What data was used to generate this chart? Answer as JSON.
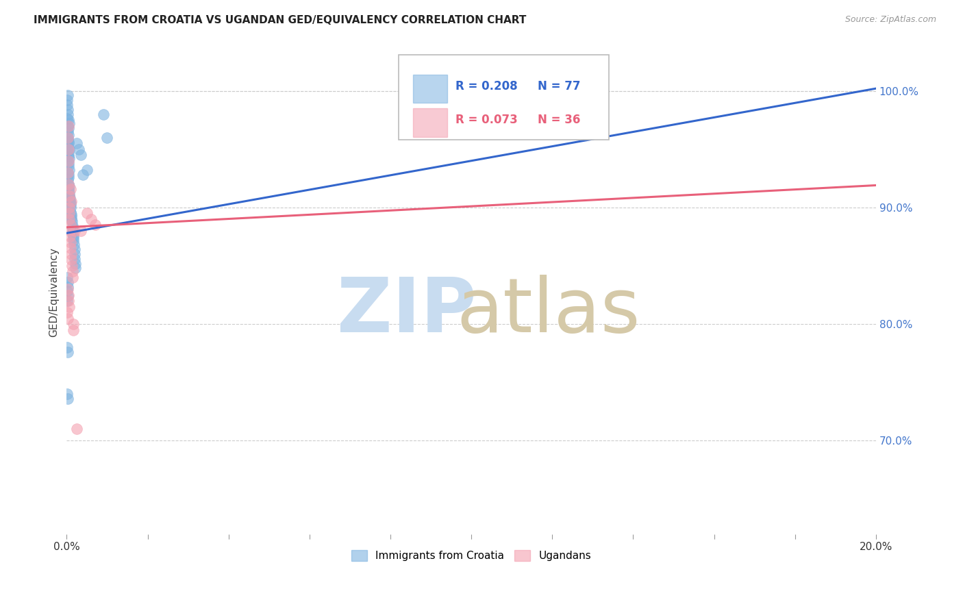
{
  "title": "IMMIGRANTS FROM CROATIA VS UGANDAN GED/EQUIVALENCY CORRELATION CHART",
  "source": "Source: ZipAtlas.com",
  "ylabel": "GED/Equivalency",
  "ytick_values": [
    0.7,
    0.8,
    0.9,
    1.0
  ],
  "ytick_labels": [
    "70.0%",
    "80.0%",
    "90.0%",
    "100.0%"
  ],
  "xlim": [
    0.0,
    0.2
  ],
  "ylim": [
    0.62,
    1.035
  ],
  "blue_color": "#7EB3E0",
  "pink_color": "#F4A0B0",
  "line_blue": "#3366CC",
  "line_pink": "#E8607A",
  "legend_r1": "R = 0.208",
  "legend_n1": "N = 77",
  "legend_r2": "R = 0.073",
  "legend_n2": "N = 36",
  "watermark_zip_color": "#C8DCF0",
  "watermark_atlas_color": "#D5C9A8",
  "title_fontsize": 11,
  "source_fontsize": 9,
  "blue_line_intercept": 0.878,
  "blue_line_slope": 0.62,
  "pink_line_intercept": 0.883,
  "pink_line_slope": 0.18,
  "croatia_x": [
    0.0002,
    0.0003,
    0.0004,
    0.0003,
    0.0005,
    0.0004,
    0.0006,
    0.0003,
    0.0002,
    0.0004,
    0.0003,
    0.0005,
    0.0004,
    0.0003,
    0.0002,
    0.0004,
    0.0005,
    0.0006,
    0.0007,
    0.0004,
    0.0003,
    0.0005,
    0.0006,
    0.0004,
    0.0003,
    0.0005,
    0.0004,
    0.0006,
    0.0007,
    0.0005,
    0.0008,
    0.0007,
    0.0009,
    0.0008,
    0.001,
    0.0009,
    0.001,
    0.0012,
    0.0011,
    0.0013,
    0.0012,
    0.0014,
    0.0015,
    0.0014,
    0.0016,
    0.0015,
    0.0017,
    0.0016,
    0.0018,
    0.0019,
    0.002,
    0.0019,
    0.0021,
    0.0022,
    0.0001,
    0.0002,
    0.0001,
    0.0003,
    0.0002,
    0.0001,
    0.0001,
    0.0002,
    0.0003,
    0.0001,
    0.0002,
    0.0001,
    0.0001,
    0.0002,
    0.0001,
    0.0003,
    0.0025,
    0.003,
    0.0035,
    0.009,
    0.01,
    0.005,
    0.004
  ],
  "croatia_y": [
    0.96,
    0.97,
    0.975,
    0.965,
    0.955,
    0.968,
    0.972,
    0.958,
    0.95,
    0.962,
    0.948,
    0.956,
    0.944,
    0.952,
    0.94,
    0.946,
    0.938,
    0.942,
    0.95,
    0.936,
    0.93,
    0.928,
    0.932,
    0.926,
    0.924,
    0.92,
    0.916,
    0.918,
    0.912,
    0.914,
    0.908,
    0.91,
    0.904,
    0.906,
    0.9,
    0.902,
    0.896,
    0.892,
    0.894,
    0.888,
    0.89,
    0.884,
    0.88,
    0.882,
    0.876,
    0.878,
    0.872,
    0.874,
    0.868,
    0.864,
    0.86,
    0.856,
    0.852,
    0.848,
    0.988,
    0.984,
    0.992,
    0.98,
    0.996,
    0.976,
    0.84,
    0.836,
    0.832,
    0.828,
    0.824,
    0.82,
    0.78,
    0.776,
    0.74,
    0.736,
    0.955,
    0.95,
    0.945,
    0.98,
    0.96,
    0.932,
    0.928
  ],
  "uganda_x": [
    0.0002,
    0.0004,
    0.0003,
    0.0005,
    0.0004,
    0.0006,
    0.0005,
    0.0007,
    0.0006,
    0.0008,
    0.0007,
    0.0009,
    0.0008,
    0.001,
    0.0009,
    0.0011,
    0.001,
    0.0012,
    0.0011,
    0.0013,
    0.0014,
    0.0015,
    0.0016,
    0.0017,
    0.0003,
    0.0004,
    0.0005,
    0.0006,
    0.0001,
    0.0002,
    0.005,
    0.006,
    0.007,
    0.0035,
    0.0025,
    0.002
  ],
  "uganda_y": [
    0.96,
    0.94,
    0.93,
    0.92,
    0.97,
    0.91,
    0.95,
    0.9,
    0.89,
    0.88,
    0.895,
    0.885,
    0.875,
    0.87,
    0.916,
    0.905,
    0.865,
    0.86,
    0.855,
    0.85,
    0.845,
    0.84,
    0.8,
    0.795,
    0.83,
    0.825,
    0.82,
    0.815,
    0.81,
    0.805,
    0.895,
    0.89,
    0.885,
    0.88,
    0.71,
    0.88
  ]
}
